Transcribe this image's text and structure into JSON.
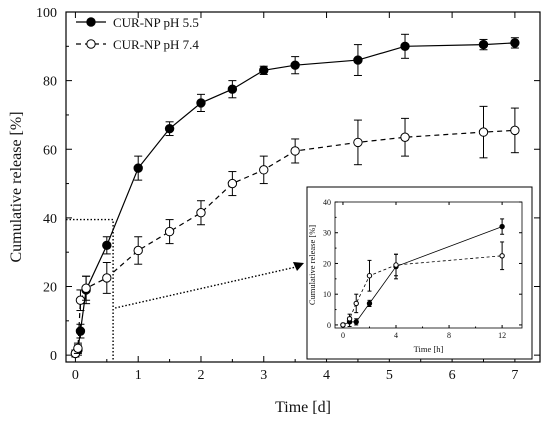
{
  "chart_data": [
    {
      "type": "line",
      "xlabel": "Time [d]",
      "ylabel": "Cumulative release [%]",
      "xlim": [
        -0.15,
        7.4
      ],
      "ylim": [
        -2,
        100
      ],
      "xticks": [
        "0",
        "1",
        "2",
        "3",
        "4",
        "5",
        "6",
        "7"
      ],
      "yticks": [
        "0",
        "20",
        "40",
        "60",
        "80",
        "100"
      ],
      "legend": "top-left",
      "series": [
        {
          "name": "CUR-NP pH 5.5",
          "marker": "filled-circle",
          "line": "solid",
          "color": "#000000",
          "points": [
            {
              "x": 0.0,
              "y": 0.5,
              "err": 1
            },
            {
              "x": 0.04,
              "y": 1.5,
              "err": 1.5
            },
            {
              "x": 0.08,
              "y": 7,
              "err": 2
            },
            {
              "x": 0.17,
              "y": 19,
              "err": 4
            },
            {
              "x": 0.5,
              "y": 32,
              "err": 2.5
            },
            {
              "x": 1.0,
              "y": 54.5,
              "err": 3.5
            },
            {
              "x": 1.5,
              "y": 66,
              "err": 2
            },
            {
              "x": 2.0,
              "y": 73.5,
              "err": 2.5
            },
            {
              "x": 2.5,
              "y": 77.5,
              "err": 2.5
            },
            {
              "x": 3.0,
              "y": 83,
              "err": 1.2
            },
            {
              "x": 3.5,
              "y": 84.5,
              "err": 2.5
            },
            {
              "x": 4.5,
              "y": 86,
              "err": 4.5
            },
            {
              "x": 5.25,
              "y": 90,
              "err": 3.5
            },
            {
              "x": 6.5,
              "y": 90.5,
              "err": 1.5
            },
            {
              "x": 7.0,
              "y": 91,
              "err": 1.5
            }
          ]
        },
        {
          "name": "CUR-NP pH 7.4",
          "marker": "open-circle",
          "line": "dashed",
          "color": "#000000",
          "points": [
            {
              "x": 0.0,
              "y": 0.5,
              "err": 1
            },
            {
              "x": 0.04,
              "y": 2,
              "err": 1.5
            },
            {
              "x": 0.08,
              "y": 16,
              "err": 3
            },
            {
              "x": 0.17,
              "y": 19.5,
              "err": 3.5
            },
            {
              "x": 0.5,
              "y": 22.5,
              "err": 4.5
            },
            {
              "x": 1.0,
              "y": 30.5,
              "err": 4
            },
            {
              "x": 1.5,
              "y": 36,
              "err": 3.5
            },
            {
              "x": 2.0,
              "y": 41.5,
              "err": 3.5
            },
            {
              "x": 2.5,
              "y": 50,
              "err": 3.5
            },
            {
              "x": 3.0,
              "y": 54,
              "err": 4
            },
            {
              "x": 3.5,
              "y": 59.5,
              "err": 3.5
            },
            {
              "x": 4.5,
              "y": 62,
              "err": 6.5
            },
            {
              "x": 5.25,
              "y": 63.5,
              "err": 5.5
            },
            {
              "x": 6.5,
              "y": 65,
              "err": 7.5
            },
            {
              "x": 7.0,
              "y": 65.5,
              "err": 6.5
            }
          ]
        }
      ],
      "zoom_region": {
        "x": [
          0,
          0.6
        ],
        "y": [
          0,
          39.5
        ]
      }
    },
    {
      "type": "line",
      "xlabel": "Time [h]",
      "ylabel": "Cumulative release [%]",
      "xlim": [
        -0.6,
        13.5
      ],
      "ylim": [
        -1,
        40
      ],
      "xticks": [
        "0",
        "4",
        "8",
        "12"
      ],
      "yticks": [
        "0",
        "10",
        "20",
        "30",
        "40"
      ],
      "series": [
        {
          "marker": "filled-circle",
          "line": "solid",
          "color": "#000000",
          "points": [
            {
              "x": 0,
              "y": 0,
              "err": 0.5
            },
            {
              "x": 0.5,
              "y": 1,
              "err": 1.5
            },
            {
              "x": 1,
              "y": 1,
              "err": 1
            },
            {
              "x": 2,
              "y": 7,
              "err": 1
            },
            {
              "x": 4,
              "y": 19,
              "err": 4
            },
            {
              "x": 12,
              "y": 32,
              "err": 2.5
            }
          ]
        },
        {
          "marker": "open-circle",
          "line": "dashed",
          "color": "#000000",
          "points": [
            {
              "x": 0,
              "y": 0,
              "err": 0.5
            },
            {
              "x": 0.5,
              "y": 2,
              "err": 1.5
            },
            {
              "x": 1,
              "y": 7,
              "err": 3
            },
            {
              "x": 2,
              "y": 16,
              "err": 5
            },
            {
              "x": 4,
              "y": 19.5,
              "err": 3.5
            },
            {
              "x": 12,
              "y": 22.5,
              "err": 4.5
            }
          ]
        }
      ]
    }
  ]
}
